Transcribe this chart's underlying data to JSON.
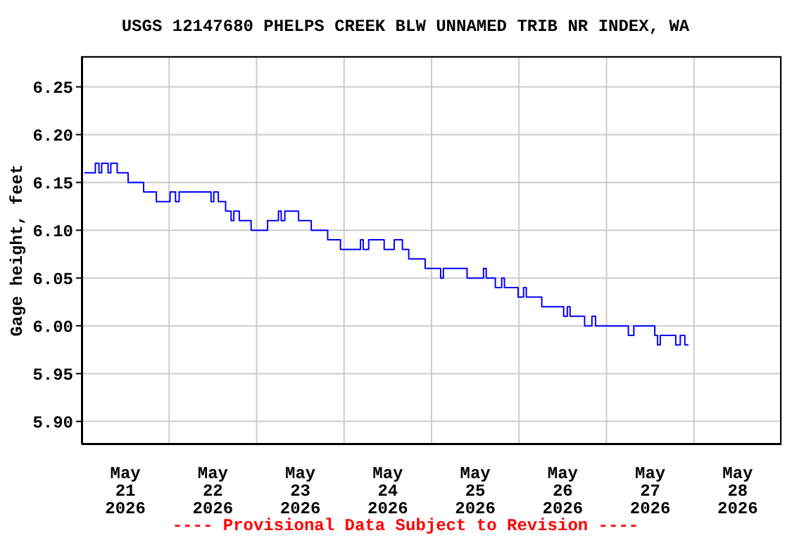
{
  "chart_data": {
    "type": "step",
    "title": "USGS 12147680 PHELPS CREEK BLW UNNAMED TRIB NR INDEX, WA",
    "ylabel": "Gage height, feet",
    "annotations": [
      "---- Provisional Data Subject to Revision ----"
    ],
    "x": [
      "2026-05-21T00:45",
      "2026-05-21T03:45",
      "2026-05-21T04:45",
      "2026-05-21T05:30",
      "2026-05-21T07:15",
      "2026-05-21T08:00",
      "2026-05-21T09:45",
      "2026-05-21T12:45",
      "2026-05-21T17:00",
      "2026-05-21T20:30",
      "2026-05-22T00:15",
      "2026-05-22T01:45",
      "2026-05-22T02:45",
      "2026-05-22T10:45",
      "2026-05-22T11:30",
      "2026-05-22T12:15",
      "2026-05-22T13:30",
      "2026-05-22T15:30",
      "2026-05-22T17:00",
      "2026-05-22T17:45",
      "2026-05-22T19:15",
      "2026-05-22T22:30",
      "2026-05-23T03:00",
      "2026-05-23T06:00",
      "2026-05-23T06:45",
      "2026-05-23T07:45",
      "2026-05-23T11:30",
      "2026-05-23T15:00",
      "2026-05-23T19:30",
      "2026-05-23T23:00",
      "2026-05-24T04:30",
      "2026-05-24T05:15",
      "2026-05-24T06:45",
      "2026-05-24T11:00",
      "2026-05-24T13:45",
      "2026-05-24T16:00",
      "2026-05-24T17:45",
      "2026-05-24T22:15",
      "2026-05-25T02:30",
      "2026-05-25T03:15",
      "2026-05-25T09:00",
      "2026-05-25T09:45",
      "2026-05-25T14:15",
      "2026-05-25T15:00",
      "2026-05-25T17:30",
      "2026-05-25T19:15",
      "2026-05-25T20:00",
      "2026-05-25T23:45",
      "2026-05-26T01:15",
      "2026-05-26T02:00",
      "2026-05-26T06:15",
      "2026-05-26T12:15",
      "2026-05-26T13:15",
      "2026-05-26T14:00",
      "2026-05-26T18:00",
      "2026-05-26T20:00",
      "2026-05-26T21:00",
      "2026-05-27T06:00",
      "2026-05-27T07:30",
      "2026-05-27T13:15",
      "2026-05-27T14:00",
      "2026-05-27T14:45",
      "2026-05-27T19:00",
      "2026-05-27T20:15",
      "2026-05-27T21:30",
      "2026-05-27T22:30"
    ],
    "series": [
      {
        "color": "#0000ff",
        "values": [
          6.16,
          6.17,
          6.16,
          6.17,
          6.16,
          6.17,
          6.16,
          6.15,
          6.14,
          6.13,
          6.14,
          6.13,
          6.14,
          6.14,
          6.13,
          6.14,
          6.13,
          6.12,
          6.11,
          6.12,
          6.11,
          6.1,
          6.11,
          6.12,
          6.11,
          6.12,
          6.11,
          6.1,
          6.09,
          6.08,
          6.09,
          6.08,
          6.09,
          6.08,
          6.09,
          6.08,
          6.07,
          6.06,
          6.05,
          6.06,
          6.06,
          6.05,
          6.06,
          6.05,
          6.04,
          6.05,
          6.04,
          6.03,
          6.04,
          6.03,
          6.02,
          6.01,
          6.02,
          6.01,
          6.0,
          6.01,
          6.0,
          5.99,
          6.0,
          5.99,
          5.98,
          5.99,
          5.98,
          5.99,
          5.98,
          5.98
        ]
      }
    ],
    "xlim": [
      "2026-05-21T00:00",
      "2026-05-29T00:00"
    ],
    "xticks": [
      {
        "value": "2026-05-21T00:00",
        "label": null
      },
      {
        "value": "2026-05-21T12:00",
        "label": "May\n21\n2026"
      },
      {
        "value": "2026-05-22T00:00",
        "label": null
      },
      {
        "value": "2026-05-22T12:00",
        "label": "May\n22\n2026"
      },
      {
        "value": "2026-05-23T00:00",
        "label": null
      },
      {
        "value": "2026-05-23T12:00",
        "label": "May\n23\n2026"
      },
      {
        "value": "2026-05-24T00:00",
        "label": null
      },
      {
        "value": "2026-05-24T12:00",
        "label": "May\n24\n2026"
      },
      {
        "value": "2026-05-25T00:00",
        "label": null
      },
      {
        "value": "2026-05-25T12:00",
        "label": "May\n25\n2026"
      },
      {
        "value": "2026-05-26T00:00",
        "label": null
      },
      {
        "value": "2026-05-26T12:00",
        "label": "May\n26\n2026"
      },
      {
        "value": "2026-05-27T00:00",
        "label": null
      },
      {
        "value": "2026-05-27T12:00",
        "label": "May\n27\n2026"
      },
      {
        "value": "2026-05-28T00:00",
        "label": null
      },
      {
        "value": "2026-05-28T12:00",
        "label": "May\n28\n2026"
      },
      {
        "value": "2026-05-29T00:00",
        "label": null
      }
    ],
    "ylim": [
      5.876,
      6.282
    ],
    "yticks": [
      {
        "value": 5.9,
        "label": "5.90"
      },
      5.95,
      {
        "value": 6.0,
        "label": "6.00"
      },
      6.05,
      {
        "value": 6.1,
        "label": "6.10"
      },
      6.15,
      {
        "value": 6.2,
        "label": "6.20"
      },
      6.25
    ],
    "grid": true,
    "legend": false,
    "line_style": "solid",
    "marker": "none"
  }
}
